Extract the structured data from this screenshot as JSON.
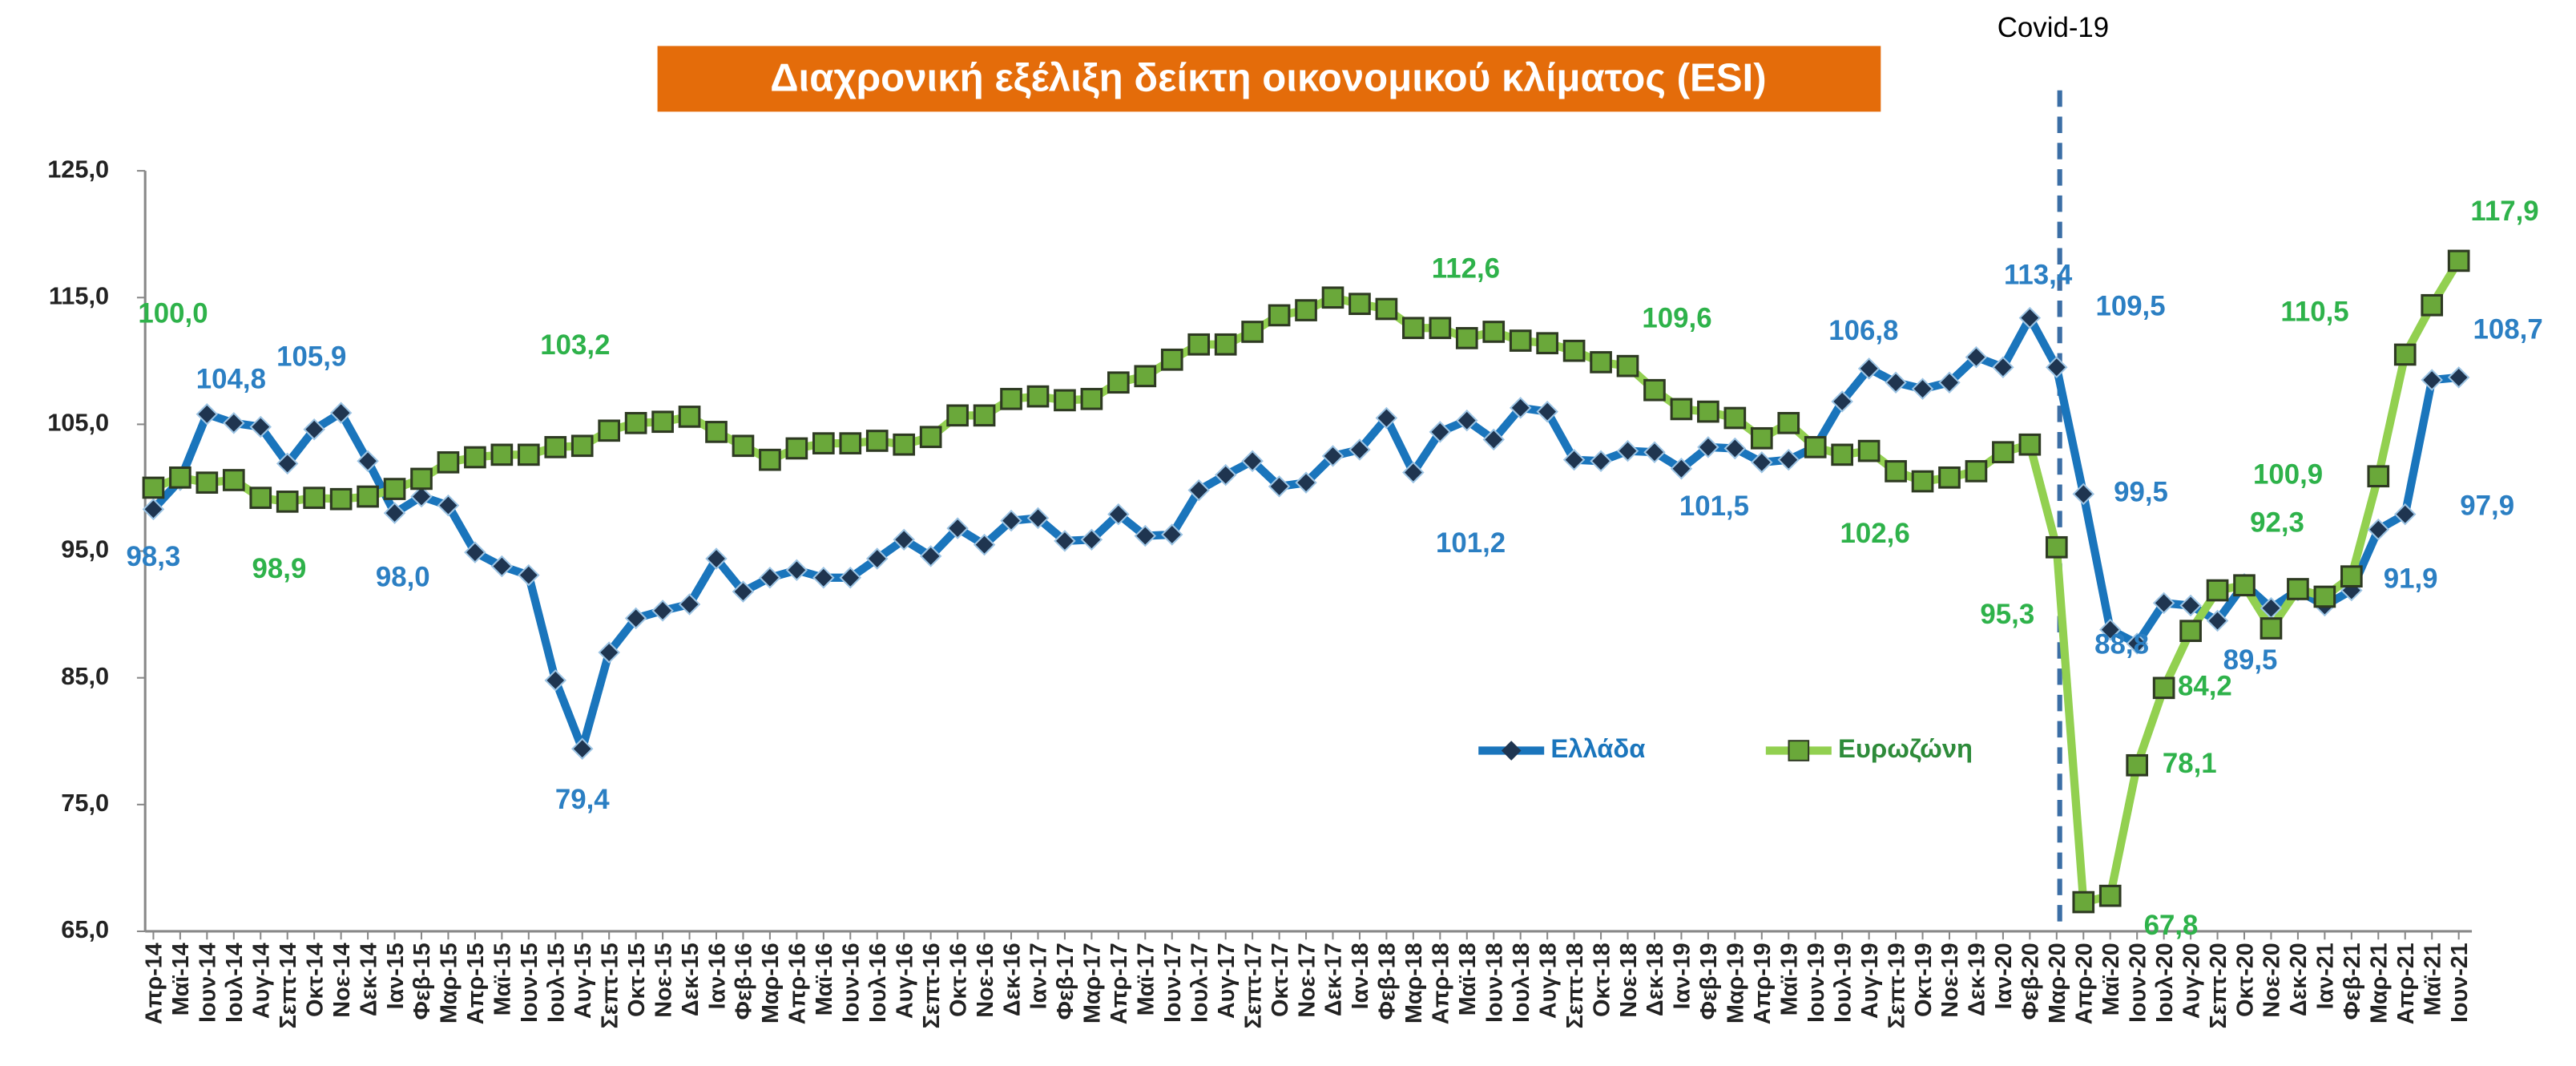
{
  "chart_data": {
    "type": "line",
    "title": "Διαχρονική εξέλιξη δείκτη οικονομικού κλίματος (ESI)",
    "annotation": "Covid-19",
    "categories": [
      "Απρ-14",
      "Μαϊ-14",
      "Ιουν-14",
      "Ιουλ-14",
      "Αυγ-14",
      "Σεπτ-14",
      "Οκτ-14",
      "Νοε-14",
      "Δεκ-14",
      "Ιαν-15",
      "Φεβ-15",
      "Μαρ-15",
      "Απρ-15",
      "Μαϊ-15",
      "Ιουν-15",
      "Ιουλ-15",
      "Αυγ-15",
      "Σεπτ-15",
      "Οκτ-15",
      "Νοε-15",
      "Δεκ-15",
      "Ιαν-16",
      "Φεβ-16",
      "Μαρ-16",
      "Απρ-16",
      "Μαϊ-16",
      "Ιουν-16",
      "Ιουλ-16",
      "Αυγ-16",
      "Σεπτ-16",
      "Οκτ-16",
      "Νοε-16",
      "Δεκ-16",
      "Ιαν-17",
      "Φεβ-17",
      "Μαρ-17",
      "Απρ-17",
      "Μαϊ-17",
      "Ιουν-17",
      "Ιουλ-17",
      "Αυγ-17",
      "Σεπτ-17",
      "Οκτ-17",
      "Νοε-17",
      "Δεκ-17",
      "Ιαν-18",
      "Φεβ-18",
      "Μαρ-18",
      "Απρ-18",
      "Μαϊ-18",
      "Ιουν-18",
      "Ιουλ-18",
      "Αυγ-18",
      "Σεπτ-18",
      "Οκτ-18",
      "Νοε-18",
      "Δεκ-18",
      "Ιαν-19",
      "Φεβ-19",
      "Μαρ-19",
      "Απρ-19",
      "Μαϊ-19",
      "Ιουν-19",
      "Ιουλ-19",
      "Αυγ-19",
      "Σεπτ-19",
      "Οκτ-19",
      "Νοε-19",
      "Δεκ-19",
      "Ιαν-20",
      "Φεβ-20",
      "Μαρ-20",
      "Απρ-20",
      "Μαϊ-20",
      "Ιουν-20",
      "Ιουλ-20",
      "Αυγ-20",
      "Σεπτ-20",
      "Οκτ-20",
      "Νοε-20",
      "Δεκ-20",
      "Ιαν-21",
      "Φεβ-21",
      "Μαρ-21",
      "Απρ-21",
      "Μαϊ-21",
      "Ιουν-21"
    ],
    "series": [
      {
        "name": "Ελλάδα",
        "color": "#1a75bc",
        "label_color": "#2b7fc3",
        "marker": "diamond",
        "values": [
          98.3,
          100.6,
          105.8,
          105.1,
          104.8,
          101.9,
          104.6,
          105.9,
          102.1,
          98.0,
          99.3,
          98.6,
          94.9,
          93.8,
          93.1,
          84.8,
          79.4,
          87.0,
          89.7,
          90.3,
          90.8,
          94.4,
          91.8,
          92.9,
          93.5,
          92.9,
          92.9,
          94.4,
          95.9,
          94.6,
          96.8,
          95.5,
          97.4,
          97.6,
          95.8,
          95.9,
          97.9,
          96.2,
          96.3,
          99.8,
          101.0,
          102.1,
          100.1,
          100.4,
          102.5,
          103.0,
          105.5,
          101.2,
          104.4,
          105.3,
          103.8,
          106.3,
          106.0,
          102.2,
          102.1,
          102.9,
          102.8,
          101.5,
          103.2,
          103.1,
          102.0,
          102.2,
          103.2,
          106.8,
          109.4,
          108.3,
          107.8,
          108.3,
          110.3,
          109.5,
          113.4,
          109.5,
          99.5,
          88.8,
          87.7,
          90.9,
          90.7,
          89.5,
          92.4,
          90.5,
          91.9,
          90.7,
          91.9,
          96.7,
          97.9,
          108.5,
          108.7
        ],
        "value_labels": [
          "98,3",
          null,
          null,
          null,
          "104,8",
          null,
          null,
          "105,9",
          null,
          "98,0",
          null,
          null,
          null,
          null,
          null,
          null,
          "79,4",
          null,
          null,
          null,
          null,
          null,
          null,
          null,
          null,
          null,
          null,
          null,
          null,
          null,
          null,
          null,
          null,
          null,
          null,
          null,
          null,
          null,
          null,
          null,
          null,
          null,
          null,
          null,
          null,
          null,
          null,
          "101,2",
          null,
          null,
          null,
          null,
          null,
          null,
          null,
          null,
          null,
          "101,5",
          null,
          null,
          null,
          null,
          null,
          "106,8",
          null,
          null,
          null,
          null,
          null,
          null,
          "113,4",
          "109,5",
          "99,5",
          "88,8",
          null,
          null,
          null,
          "89,5",
          null,
          null,
          null,
          null,
          "91,9",
          null,
          "97,9",
          null,
          "108,7"
        ]
      },
      {
        "name": "Ευρωζώνη",
        "color": "#92d050",
        "label_color": "#2eb24a",
        "marker": "square",
        "values": [
          100.0,
          100.8,
          100.4,
          100.6,
          99.2,
          98.9,
          99.2,
          99.1,
          99.3,
          99.9,
          100.7,
          102.0,
          102.4,
          102.6,
          102.6,
          103.2,
          103.3,
          104.5,
          105.1,
          105.2,
          105.6,
          104.4,
          103.3,
          102.2,
          103.1,
          103.5,
          103.5,
          103.7,
          103.4,
          104.0,
          105.7,
          105.7,
          107.0,
          107.2,
          106.9,
          107.0,
          108.3,
          108.8,
          110.1,
          111.3,
          111.3,
          112.3,
          113.6,
          114.0,
          115.0,
          114.5,
          114.1,
          112.6,
          112.6,
          111.8,
          112.3,
          111.6,
          111.4,
          110.8,
          109.9,
          109.6,
          107.7,
          106.2,
          106.0,
          105.5,
          103.9,
          105.1,
          103.2,
          102.6,
          102.9,
          101.3,
          100.5,
          100.8,
          101.3,
          102.8,
          103.4,
          95.3,
          67.3,
          67.8,
          78.1,
          84.2,
          88.7,
          91.9,
          92.3,
          88.9,
          92.0,
          91.4,
          93.0,
          100.9,
          110.5,
          114.4,
          117.9
        ],
        "value_labels": [
          "100,0",
          null,
          null,
          null,
          null,
          "98,9",
          null,
          null,
          null,
          null,
          null,
          null,
          null,
          null,
          null,
          "103,2",
          null,
          null,
          null,
          null,
          null,
          null,
          null,
          null,
          null,
          null,
          null,
          null,
          null,
          null,
          null,
          null,
          null,
          null,
          null,
          null,
          null,
          null,
          null,
          null,
          null,
          null,
          null,
          null,
          null,
          null,
          null,
          "112,6",
          null,
          null,
          null,
          null,
          null,
          null,
          null,
          "109,6",
          null,
          null,
          null,
          null,
          null,
          null,
          null,
          "102,6",
          null,
          null,
          null,
          null,
          null,
          null,
          null,
          "95,3",
          null,
          "67,8",
          "78,1",
          "84,2",
          null,
          null,
          "92,3",
          null,
          null,
          null,
          null,
          "100,9",
          "110,5",
          null,
          "117,9"
        ]
      }
    ],
    "ylim": [
      65,
      125
    ],
    "yticks": [
      {
        "value": 65,
        "label": "65,0"
      },
      {
        "value": 75,
        "label": "75,0"
      },
      {
        "value": 85,
        "label": "85,0"
      },
      {
        "value": 95,
        "label": "95,0"
      },
      {
        "value": 105,
        "label": "105,0"
      },
      {
        "value": 115,
        "label": "115,0"
      },
      {
        "value": 125,
        "label": "125,0"
      }
    ],
    "grid": false,
    "legend": "center"
  }
}
